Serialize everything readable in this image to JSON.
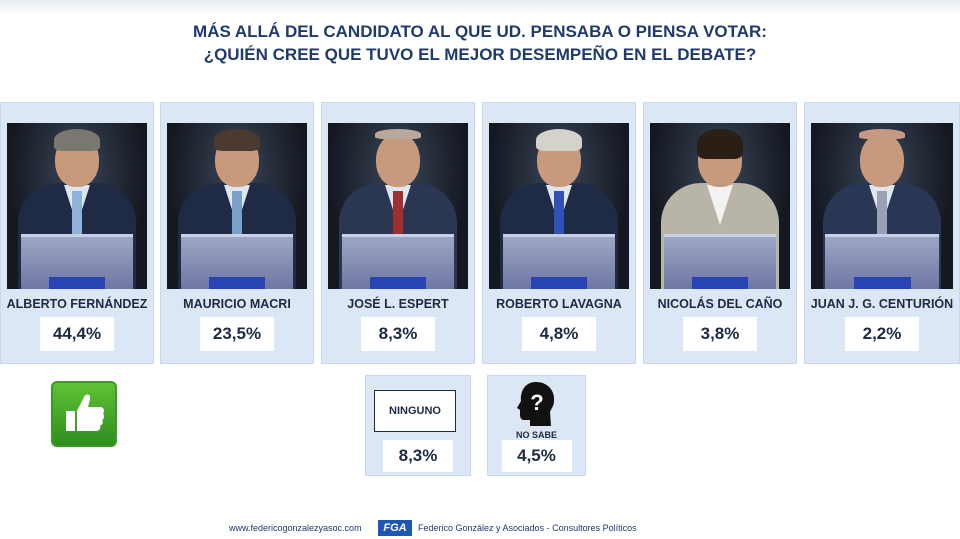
{
  "title": {
    "line1": "MÁS ALLÁ DEL CANDIDATO AL QUE UD. PENSABA O PIENSA VOTAR:",
    "line2": "¿QUIÉN CREE QUE TUVO EL MEJOR DESEMPEÑO EN EL DEBATE?"
  },
  "candidates": [
    {
      "name": "ALBERTO FERNÁNDEZ",
      "pct": "44,4%",
      "icon": "candidate-photo"
    },
    {
      "name": "MAURICIO MACRI",
      "pct": "23,5%",
      "icon": "candidate-photo"
    },
    {
      "name": "JOSÉ L. ESPERT",
      "pct": "8,3%",
      "icon": "candidate-photo"
    },
    {
      "name": "ROBERTO LAVAGNA",
      "pct": "4,8%",
      "icon": "candidate-photo"
    },
    {
      "name": "NICOLÁS DEL CAÑO",
      "pct": "3,8%",
      "icon": "candidate-photo"
    },
    {
      "name": "JUAN J. G. CENTURIÓN",
      "pct": "2,2%",
      "icon": "candidate-photo"
    }
  ],
  "extra": {
    "ninguno": {
      "label": "NINGUNO",
      "pct": "8,3%"
    },
    "no_sabe": {
      "label": "NO SABE",
      "pct": "4,5%",
      "icon": "question-head-icon"
    }
  },
  "winner_icon": "thumbs-up-icon",
  "colors": {
    "title": "#1f3a6d",
    "card": "#dbe7f4",
    "thumb": "#3a9a25",
    "brand": "#1f55b3"
  },
  "footer": {
    "url": "www.federicogonzalezyasoc.com",
    "logo": "FGA",
    "firm": "Federico González y Asociados - Consultores Políticos"
  }
}
